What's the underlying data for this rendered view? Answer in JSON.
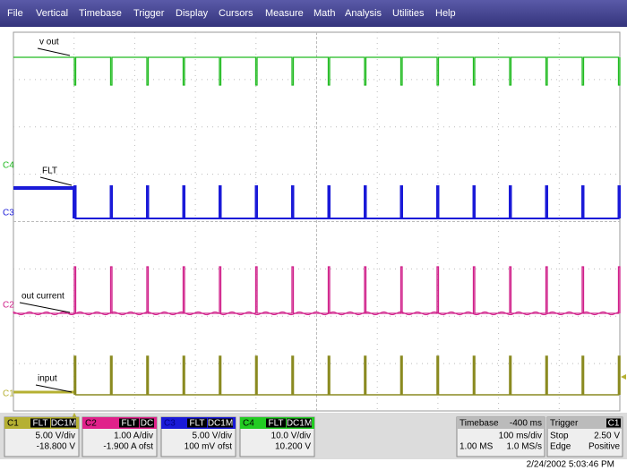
{
  "menu": [
    "File",
    "Vertical",
    "Timebase",
    "Trigger",
    "Display",
    "Cursors",
    "Measure",
    "Math",
    "Analysis",
    "Utilities",
    "Help"
  ],
  "channel_markers": [
    "C4",
    "C3",
    "C2",
    "C1"
  ],
  "trace_labels": [
    "v out",
    "FLT",
    "out current",
    "input"
  ],
  "channels": [
    {
      "name": "C1",
      "badges": [
        "FLT",
        "DC1M"
      ],
      "lines": [
        "5.00 V/div",
        "-18.800 V"
      ]
    },
    {
      "name": "C2",
      "badges": [
        "FLT",
        "DC"
      ],
      "lines": [
        "1.00 A/div",
        "-1.900 A ofst"
      ]
    },
    {
      "name": "C3",
      "badges": [
        "FLT",
        "DC1M"
      ],
      "lines": [
        "5.00 V/div",
        "100 mV ofst"
      ]
    },
    {
      "name": "C4",
      "badges": [
        "FLT",
        "DC1M"
      ],
      "lines": [
        "10.0 V/div",
        "10.200 V"
      ]
    }
  ],
  "timebase": {
    "label": "Timebase",
    "value": "-400 ms",
    "per_div": "100 ms/div",
    "samples": "1.00 MS",
    "rate": "1.0 MS/s"
  },
  "trigger": {
    "label": "Trigger",
    "source": "C1",
    "rows": [
      [
        "Stop",
        "2.50 V"
      ],
      [
        "Edge",
        "Positive"
      ]
    ]
  },
  "timestamp": "2/24/2002 5:03:46 PM"
}
